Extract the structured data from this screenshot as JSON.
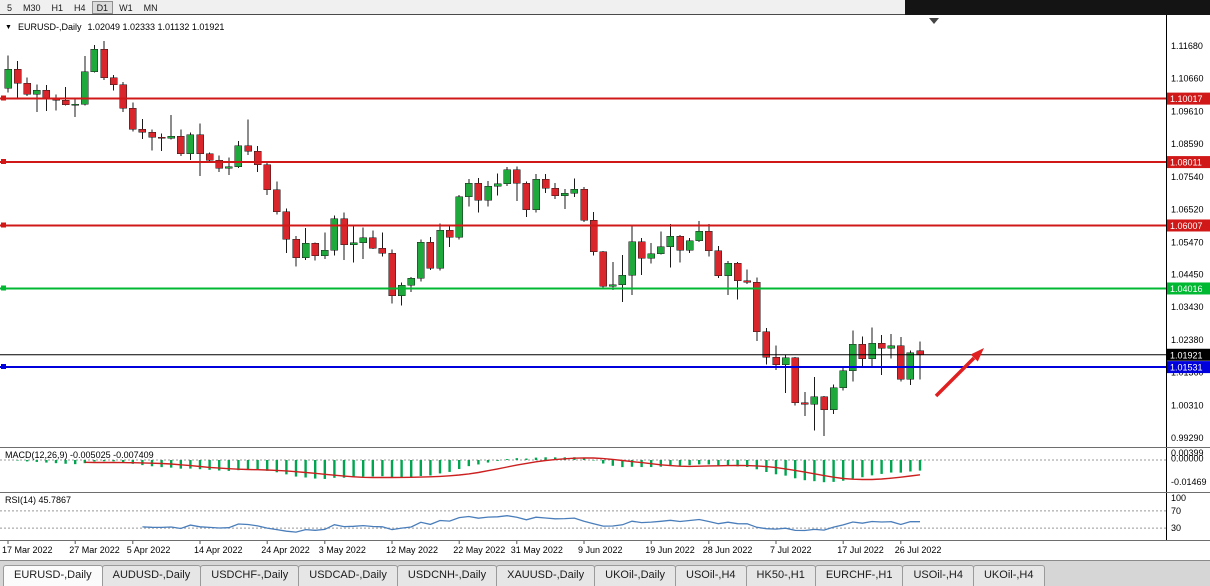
{
  "toolbar": {
    "timeframes": [
      "5",
      "M30",
      "H1",
      "H4",
      "D1",
      "W1",
      "MN"
    ],
    "active_timeframe": "D1"
  },
  "chart": {
    "title": "EURUSD-,Daily",
    "ohlc_display": "1.02049 1.02333 1.01132 1.01921"
  },
  "chart_data": {
    "type": "candlestick",
    "symbol": "EURUSD-",
    "timeframe": "Daily",
    "open": 1.02049,
    "high": 1.02333,
    "low": 1.01132,
    "close": 1.01921,
    "colors": {
      "up": "#1fa83c",
      "down": "#d9262c",
      "wick": "#1a1a1a"
    },
    "price_axis_labels": [
      "1.11680",
      "1.10660",
      "1.09610",
      "1.08590",
      "1.07540",
      "1.06520",
      "1.05470",
      "1.04450",
      "1.03430",
      "1.02380",
      "1.01360",
      "1.00310",
      "0.99290"
    ],
    "hlines": [
      {
        "price": 1.10017,
        "label": "1.10017",
        "color": "#d01818",
        "type": "resistance"
      },
      {
        "price": 1.08011,
        "label": "1.08011",
        "color": "#d01818",
        "type": "resistance"
      },
      {
        "price": 1.06007,
        "label": "1.06007",
        "color": "#d01818",
        "type": "resistance"
      },
      {
        "price": 1.04016,
        "label": "1.04016",
        "color": "#00b832",
        "type": "support"
      },
      {
        "price": 1.01531,
        "label": "1.01531",
        "color": "#0000dd",
        "type": "support"
      }
    ],
    "current_price": {
      "price": 1.01921,
      "label": "1.01921",
      "color": "#000000"
    },
    "candles": [
      [
        1.1035,
        1.1138,
        1.1021,
        1.1095
      ],
      [
        1.1095,
        1.112,
        1.1003,
        1.105
      ],
      [
        1.105,
        1.1069,
        1.101,
        1.1015
      ],
      [
        1.1015,
        1.1046,
        1.096,
        1.1028
      ],
      [
        1.1028,
        1.1044,
        1.0963,
        1.1005
      ],
      [
        1.1005,
        1.1014,
        1.0964,
        1.0997
      ],
      [
        1.0997,
        1.1039,
        1.098,
        1.0982
      ],
      [
        1.0982,
        1.0999,
        1.0944,
        1.0984
      ],
      [
        1.0984,
        1.1137,
        1.098,
        1.1086
      ],
      [
        1.1086,
        1.1171,
        1.1084,
        1.1158
      ],
      [
        1.1158,
        1.1184,
        1.106,
        1.1067
      ],
      [
        1.1067,
        1.1076,
        1.1027,
        1.1046
      ],
      [
        1.1046,
        1.1055,
        1.096,
        1.0972
      ],
      [
        1.0972,
        1.099,
        1.0898,
        1.0905
      ],
      [
        1.0905,
        1.0938,
        1.0874,
        1.0896
      ],
      [
        1.0896,
        1.0904,
        1.0837,
        1.0879
      ],
      [
        1.0879,
        1.0892,
        1.0836,
        1.0876
      ],
      [
        1.0876,
        1.095,
        1.0872,
        1.0883
      ],
      [
        1.0883,
        1.0904,
        1.0821,
        1.0827
      ],
      [
        1.0827,
        1.0895,
        1.0808,
        1.0887
      ],
      [
        1.0887,
        1.0923,
        1.0757,
        1.0828
      ],
      [
        1.0828,
        1.0832,
        1.0798,
        1.0807
      ],
      [
        1.0807,
        1.0822,
        1.077,
        1.0781
      ],
      [
        1.0781,
        1.0815,
        1.0761,
        1.0786
      ],
      [
        1.0786,
        1.0867,
        1.0782,
        1.0852
      ],
      [
        1.0852,
        1.0936,
        1.0823,
        1.0836
      ],
      [
        1.0836,
        1.0852,
        1.077,
        1.0793
      ],
      [
        1.0793,
        1.0798,
        1.0697,
        1.0713
      ],
      [
        1.0713,
        1.0739,
        1.0635,
        1.0644
      ],
      [
        1.0644,
        1.0655,
        1.0514,
        1.0557
      ],
      [
        1.0557,
        1.0568,
        1.0471,
        1.0498
      ],
      [
        1.0498,
        1.0592,
        1.0492,
        1.0545
      ],
      [
        1.0545,
        1.0547,
        1.049,
        1.0505
      ],
      [
        1.0505,
        1.0578,
        1.0495,
        1.0522
      ],
      [
        1.0522,
        1.0632,
        1.0506,
        1.0622
      ],
      [
        1.0622,
        1.0642,
        1.0492,
        1.054
      ],
      [
        1.054,
        1.0599,
        1.0483,
        1.0546
      ],
      [
        1.0546,
        1.0594,
        1.0495,
        1.0562
      ],
      [
        1.0562,
        1.0585,
        1.0526,
        1.0528
      ],
      [
        1.0528,
        1.0579,
        1.0503,
        1.0513
      ],
      [
        1.0513,
        1.0525,
        1.0354,
        1.0379
      ],
      [
        1.0379,
        1.042,
        1.0348,
        1.0411
      ],
      [
        1.0411,
        1.0438,
        1.0391,
        1.0434
      ],
      [
        1.0434,
        1.0557,
        1.0424,
        1.0548
      ],
      [
        1.0548,
        1.0564,
        1.046,
        1.0465
      ],
      [
        1.0465,
        1.0607,
        1.0459,
        1.0585
      ],
      [
        1.0585,
        1.0604,
        1.0532,
        1.0563
      ],
      [
        1.0563,
        1.0697,
        1.0556,
        1.0691
      ],
      [
        1.0691,
        1.0748,
        1.0661,
        1.0734
      ],
      [
        1.0734,
        1.075,
        1.0642,
        1.068
      ],
      [
        1.068,
        1.0741,
        1.066,
        1.0724
      ],
      [
        1.0724,
        1.0765,
        1.0696,
        1.0733
      ],
      [
        1.0733,
        1.0786,
        1.0726,
        1.0777
      ],
      [
        1.0777,
        1.0787,
        1.0678,
        1.0734
      ],
      [
        1.0734,
        1.0739,
        1.0627,
        1.065
      ],
      [
        1.065,
        1.0764,
        1.0641,
        1.0747
      ],
      [
        1.0747,
        1.0764,
        1.0704,
        1.0719
      ],
      [
        1.0719,
        1.0735,
        1.0684,
        1.0695
      ],
      [
        1.0695,
        1.0716,
        1.0653,
        1.0702
      ],
      [
        1.0702,
        1.0749,
        1.069,
        1.0716
      ],
      [
        1.0716,
        1.0722,
        1.0611,
        1.0617
      ],
      [
        1.0617,
        1.0643,
        1.0506,
        1.0518
      ],
      [
        1.0518,
        1.052,
        1.0399,
        1.0408
      ],
      [
        1.0408,
        1.0485,
        1.0397,
        1.0413
      ],
      [
        1.0413,
        1.0508,
        1.0359,
        1.0444
      ],
      [
        1.0444,
        1.0601,
        1.0381,
        1.055
      ],
      [
        1.055,
        1.0561,
        1.0444,
        1.0497
      ],
      [
        1.0497,
        1.0546,
        1.0481,
        1.0511
      ],
      [
        1.0511,
        1.0582,
        1.0509,
        1.0534
      ],
      [
        1.0534,
        1.0605,
        1.0468,
        1.0566
      ],
      [
        1.0566,
        1.0571,
        1.0483,
        1.0523
      ],
      [
        1.0523,
        1.0561,
        1.0513,
        1.0552
      ],
      [
        1.0552,
        1.0615,
        1.0548,
        1.0583
      ],
      [
        1.0583,
        1.0606,
        1.0503,
        1.0521
      ],
      [
        1.0521,
        1.0536,
        1.0434,
        1.0442
      ],
      [
        1.0442,
        1.0489,
        1.0381,
        1.0482
      ],
      [
        1.0482,
        1.0486,
        1.0366,
        1.0426
      ],
      [
        1.0426,
        1.0462,
        1.0415,
        1.0422
      ],
      [
        1.0422,
        1.0436,
        1.0236,
        1.0265
      ],
      [
        1.0265,
        1.0277,
        1.0162,
        1.0184
      ],
      [
        1.0184,
        1.0221,
        1.0144,
        1.016
      ],
      [
        1.016,
        1.0191,
        1.0072,
        1.0182
      ],
      [
        1.0182,
        1.0185,
        1.0032,
        1.004
      ],
      [
        1.004,
        1.0075,
        0.9999,
        1.0036
      ],
      [
        1.0036,
        1.0122,
        0.9952,
        1.006
      ],
      [
        1.006,
        1.0061,
        0.9936,
        1.0019
      ],
      [
        1.0019,
        1.0098,
        1.0005,
        1.0088
      ],
      [
        1.0088,
        1.015,
        1.0079,
        1.0142
      ],
      [
        1.0142,
        1.0268,
        1.0107,
        1.0225
      ],
      [
        1.0225,
        1.025,
        1.0155,
        1.018
      ],
      [
        1.018,
        1.0278,
        1.0152,
        1.0229
      ],
      [
        1.0229,
        1.0254,
        1.0128,
        1.0213
      ],
      [
        1.0213,
        1.0258,
        1.018,
        1.022
      ],
      [
        1.022,
        1.0249,
        1.0108,
        1.0115
      ],
      [
        1.0115,
        1.0205,
        1.0097,
        1.0199
      ],
      [
        1.02049,
        1.02333,
        1.01132,
        1.01921
      ]
    ],
    "date_labels": [
      {
        "i": 0,
        "t": "17 Mar 2022"
      },
      {
        "i": 7,
        "t": "27 Mar 2022"
      },
      {
        "i": 13,
        "t": "5 Apr 2022"
      },
      {
        "i": 20,
        "t": "14 Apr 2022"
      },
      {
        "i": 27,
        "t": "24 Apr 2022"
      },
      {
        "i": 33,
        "t": "3 May 2022"
      },
      {
        "i": 40,
        "t": "12 May 2022"
      },
      {
        "i": 47,
        "t": "22 May 2022"
      },
      {
        "i": 53,
        "t": "31 May 2022"
      },
      {
        "i": 60,
        "t": "9 Jun 2022"
      },
      {
        "i": 67,
        "t": "19 Jun 2022"
      },
      {
        "i": 73,
        "t": "28 Jun 2022"
      },
      {
        "i": 80,
        "t": "7 Jul 2022"
      },
      {
        "i": 87,
        "t": "17 Jul 2022"
      },
      {
        "i": 93,
        "t": "26 Jul 2022"
      }
    ],
    "macd": {
      "label": "MACD(12,26,9)",
      "values_text": "-0.005025 -0.007409",
      "axis_labels": [
        "0.00399",
        "0.00000",
        "-0.01469"
      ],
      "histogram_color": "#00a550",
      "signal_color": "#cc2020"
    },
    "rsi": {
      "label": "RSI(14)",
      "value_text": "45.7867",
      "levels": [
        "100",
        "70",
        "30"
      ],
      "line_color": "#4a7ebb"
    },
    "annotation_arrow": {
      "color": "#e02020",
      "direction": "up-right"
    }
  },
  "tabs": [
    {
      "label": "EURUSD-,Daily",
      "active": true
    },
    {
      "label": "AUDUSD-,Daily",
      "active": false
    },
    {
      "label": "USDCHF-,Daily",
      "active": false
    },
    {
      "label": "USDCAD-,Daily",
      "active": false
    },
    {
      "label": "USDCNH-,Daily",
      "active": false
    },
    {
      "label": "XAUUSD-,Daily",
      "active": false
    },
    {
      "label": "UKOil-,Daily",
      "active": false
    },
    {
      "label": "USOil-,H4",
      "active": false
    },
    {
      "label": "HK50-,H1",
      "active": false
    },
    {
      "label": "EURCHF-,H1",
      "active": false
    },
    {
      "label": "USOil-,H4",
      "active": false
    },
    {
      "label": "UKOil-,H4",
      "active": false
    }
  ]
}
